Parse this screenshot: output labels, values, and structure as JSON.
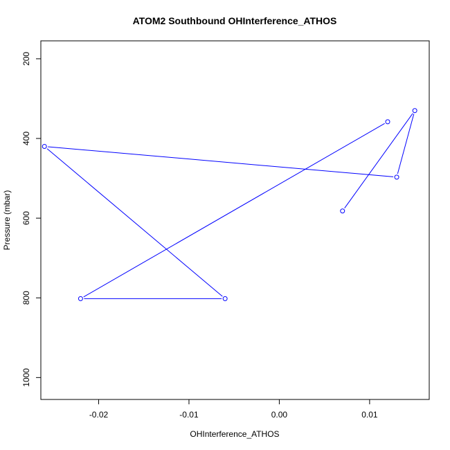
{
  "chart_data": {
    "type": "line",
    "title": "ATOM2 Southbound OHInterference_ATHOS",
    "xlabel": "OHInterference_ATHOS",
    "ylabel": "Pressure (mbar)",
    "xlim": [
      -0.0264,
      0.0166
    ],
    "ylim": [
      1055,
      155
    ],
    "y_reversed": true,
    "x_ticks": [
      -0.02,
      -0.01,
      0.0,
      0.01
    ],
    "x_tick_labels": [
      "-0.02",
      "-0.01",
      "0.00",
      "0.01"
    ],
    "y_ticks": [
      200,
      400,
      600,
      800,
      1000
    ],
    "y_tick_labels": [
      "200",
      "400",
      "600",
      "800",
      "1000"
    ],
    "grid": false,
    "series": [
      {
        "color": "#0000ff",
        "marker": "open-circle",
        "points": [
          {
            "x": 0.007,
            "y": 582
          },
          {
            "x": 0.015,
            "y": 330
          },
          {
            "x": 0.013,
            "y": 497
          },
          {
            "x": -0.026,
            "y": 420
          },
          {
            "x": -0.006,
            "y": 802
          },
          {
            "x": -0.022,
            "y": 802
          },
          {
            "x": 0.012,
            "y": 358
          }
        ]
      }
    ]
  }
}
